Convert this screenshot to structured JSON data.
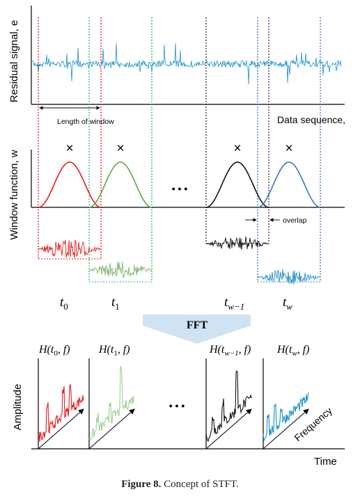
{
  "top_panel": {
    "ylabel": "Residual signal, e",
    "xlabel": "Data sequence,",
    "window_length_label": "Length of window"
  },
  "window_panel": {
    "ylabel": "Window function, w",
    "multiply_symbol": "×",
    "ellipsis": "• • •",
    "overlap_label": "overlap"
  },
  "time_labels": [
    {
      "base": "t",
      "sub": "0"
    },
    {
      "base": "t",
      "sub": "1"
    },
    {
      "base": "t",
      "sub": "w−1"
    },
    {
      "base": "t",
      "sub": "w"
    }
  ],
  "fft_label": "FFT",
  "spectra": {
    "titles": [
      {
        "pre": "H(",
        "base": "t",
        "sub": "0",
        "post": ", f)"
      },
      {
        "pre": "H(",
        "base": "t",
        "sub": "1",
        "post": ", f)"
      },
      {
        "pre": "H(",
        "base": "t",
        "sub": "w−1",
        "post": ", f)"
      },
      {
        "pre": "H(",
        "base": "t",
        "sub": "w",
        "post": ", f)"
      }
    ],
    "ylabel": "Amplitude",
    "xlabel": "Time",
    "frequency_label": "Frequency",
    "ellipsis": "• • •"
  },
  "colors": {
    "signal": "#1a8fc7",
    "w0": "#e8191f",
    "w1": "#5ea64a",
    "w_minus_1": "#111111",
    "w_last": "#3d73c2",
    "fft_arrow": "#cfe3f3"
  },
  "caption": {
    "label": "Figure 8.",
    "text": "Concept of STFT."
  }
}
